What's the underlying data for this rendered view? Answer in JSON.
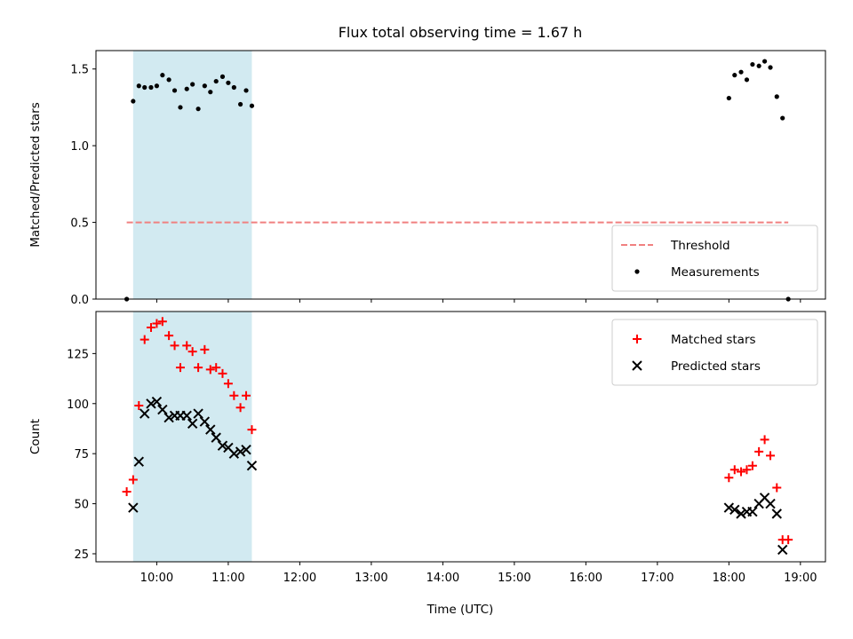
{
  "chart_data": {
    "title": "Flux total observing time = 1.67 h",
    "xlabel": "Time (UTC)",
    "x_unit": "hours UTC",
    "xlim": [
      9.15,
      19.35
    ],
    "x_ticks": [
      10,
      11,
      12,
      13,
      14,
      15,
      16,
      17,
      18,
      19
    ],
    "x_tick_labels": [
      "10:00",
      "11:00",
      "12:00",
      "13:00",
      "14:00",
      "15:00",
      "16:00",
      "17:00",
      "18:00",
      "19:00"
    ],
    "shaded_interval": [
      9.67,
      11.33
    ],
    "shaded_color": "#add8e6",
    "panels": [
      {
        "type": "scatter",
        "ylabel": "Matched/Predicted stars",
        "ylim": [
          0,
          1.62
        ],
        "y_ticks": [
          0,
          0.5,
          1.0,
          1.5
        ],
        "y_tick_labels": [
          "0.0",
          "0.5",
          "1.0",
          "1.5"
        ],
        "legend_position": "lower-right",
        "threshold": {
          "name": "Threshold",
          "y": 0.5,
          "x_range": [
            9.58,
            18.83
          ],
          "color": "#f08080",
          "style": "dashed"
        },
        "series": [
          {
            "name": "Measurements",
            "marker": "dot",
            "color": "#000000",
            "points": [
              [
                9.58,
                0.0
              ],
              [
                9.67,
                1.29
              ],
              [
                9.75,
                1.39
              ],
              [
                9.83,
                1.38
              ],
              [
                9.92,
                1.38
              ],
              [
                10.0,
                1.39
              ],
              [
                10.08,
                1.46
              ],
              [
                10.17,
                1.43
              ],
              [
                10.25,
                1.36
              ],
              [
                10.33,
                1.25
              ],
              [
                10.42,
                1.37
              ],
              [
                10.5,
                1.4
              ],
              [
                10.58,
                1.24
              ],
              [
                10.67,
                1.39
              ],
              [
                10.75,
                1.35
              ],
              [
                10.83,
                1.42
              ],
              [
                10.92,
                1.45
              ],
              [
                11.0,
                1.41
              ],
              [
                11.08,
                1.38
              ],
              [
                11.17,
                1.27
              ],
              [
                11.25,
                1.36
              ],
              [
                11.33,
                1.26
              ],
              [
                18.0,
                1.31
              ],
              [
                18.08,
                1.46
              ],
              [
                18.17,
                1.48
              ],
              [
                18.25,
                1.43
              ],
              [
                18.33,
                1.53
              ],
              [
                18.42,
                1.52
              ],
              [
                18.5,
                1.55
              ],
              [
                18.58,
                1.51
              ],
              [
                18.67,
                1.32
              ],
              [
                18.75,
                1.18
              ],
              [
                18.83,
                0.0
              ]
            ]
          }
        ]
      },
      {
        "type": "scatter",
        "ylabel": "Count",
        "ylim": [
          21,
          146
        ],
        "y_ticks": [
          25,
          50,
          75,
          100,
          125
        ],
        "y_tick_labels": [
          "25",
          "50",
          "75",
          "100",
          "125"
        ],
        "legend_position": "top-right",
        "series": [
          {
            "name": "Matched stars",
            "marker": "plus",
            "color": "#ff0000",
            "points": [
              [
                9.58,
                56
              ],
              [
                9.67,
                62
              ],
              [
                9.75,
                99
              ],
              [
                9.83,
                132
              ],
              [
                9.92,
                138
              ],
              [
                10.0,
                140
              ],
              [
                10.08,
                141
              ],
              [
                10.17,
                134
              ],
              [
                10.25,
                129
              ],
              [
                10.33,
                118
              ],
              [
                10.42,
                129
              ],
              [
                10.5,
                126
              ],
              [
                10.58,
                118
              ],
              [
                10.67,
                127
              ],
              [
                10.75,
                117
              ],
              [
                10.83,
                118
              ],
              [
                10.92,
                115
              ],
              [
                11.0,
                110
              ],
              [
                11.08,
                104
              ],
              [
                11.17,
                98
              ],
              [
                11.25,
                104
              ],
              [
                11.33,
                87
              ],
              [
                18.0,
                63
              ],
              [
                18.08,
                67
              ],
              [
                18.17,
                66
              ],
              [
                18.25,
                67
              ],
              [
                18.33,
                69
              ],
              [
                18.42,
                76
              ],
              [
                18.5,
                82
              ],
              [
                18.58,
                74
              ],
              [
                18.67,
                58
              ],
              [
                18.75,
                32
              ],
              [
                18.83,
                32
              ]
            ]
          },
          {
            "name": "Predicted stars",
            "marker": "x",
            "color": "#000000",
            "points": [
              [
                9.67,
                48
              ],
              [
                9.75,
                71
              ],
              [
                9.83,
                95
              ],
              [
                9.92,
                100
              ],
              [
                10.0,
                101
              ],
              [
                10.08,
                97
              ],
              [
                10.17,
                93
              ],
              [
                10.25,
                94
              ],
              [
                10.33,
                94
              ],
              [
                10.42,
                94
              ],
              [
                10.5,
                90
              ],
              [
                10.58,
                95
              ],
              [
                10.67,
                91
              ],
              [
                10.75,
                87
              ],
              [
                10.83,
                83
              ],
              [
                10.92,
                79
              ],
              [
                11.0,
                78
              ],
              [
                11.08,
                75
              ],
              [
                11.17,
                76
              ],
              [
                11.25,
                77
              ],
              [
                11.33,
                69
              ],
              [
                18.0,
                48
              ],
              [
                18.08,
                47
              ],
              [
                18.17,
                45
              ],
              [
                18.25,
                46
              ],
              [
                18.33,
                46
              ],
              [
                18.42,
                50
              ],
              [
                18.5,
                53
              ],
              [
                18.58,
                50
              ],
              [
                18.67,
                45
              ],
              [
                18.75,
                27
              ]
            ]
          }
        ]
      }
    ]
  }
}
